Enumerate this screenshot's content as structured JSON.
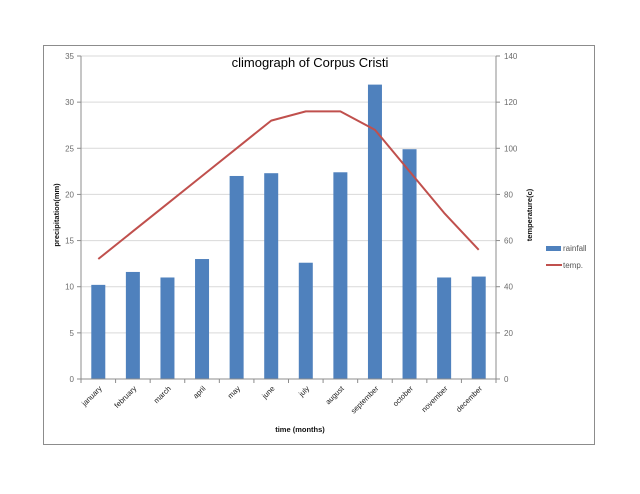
{
  "chart_data": {
    "type": "bar+line",
    "title": "climograph of Corpus Cristi",
    "xlabel": "time (months)",
    "ylabel": "precipitation(mm)",
    "y2label": "temperature(c)",
    "categories": [
      "january",
      "february",
      "march",
      "april",
      "may",
      "june",
      "july",
      "august",
      "september",
      "october",
      "november",
      "december"
    ],
    "series": [
      {
        "name": "rainfall",
        "type": "bar",
        "axis": "left",
        "color": "#4f81bd",
        "values": [
          10.2,
          11.6,
          11.0,
          13.0,
          22.0,
          22.3,
          12.6,
          22.4,
          31.9,
          24.9,
          11.0,
          11.1
        ]
      },
      {
        "name": "temp.",
        "type": "line",
        "axis": "right",
        "color": "#c0504d",
        "values": [
          52,
          64,
          76,
          88,
          100,
          112,
          116,
          116,
          108,
          90,
          72,
          56
        ]
      }
    ],
    "ylim": [
      0,
      35
    ],
    "y2lim": [
      0,
      140
    ],
    "yticks": [
      0,
      5,
      10,
      15,
      20,
      25,
      30,
      35
    ],
    "y2ticks": [
      0,
      20,
      40,
      60,
      80,
      100,
      120,
      140
    ],
    "grid": true,
    "legend_position": "right"
  },
  "legend": {
    "rainfall": "rainfall",
    "temp": "temp."
  }
}
